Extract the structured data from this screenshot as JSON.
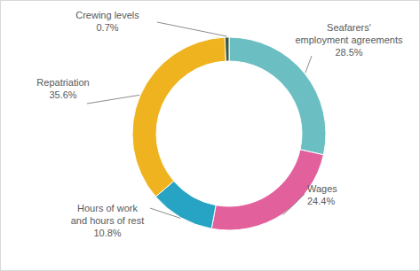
{
  "chart_data": {
    "type": "doughnut",
    "categories": [
      "Seafarers' employment agreements",
      "Wages",
      "Hours of work and hours of rest",
      "Repatriation",
      "Crewing levels"
    ],
    "values": [
      28.5,
      24.4,
      10.8,
      35.6,
      0.7
    ],
    "value_labels": [
      "28.5%",
      "24.4%",
      "10.8%",
      "35.6%",
      "0.7%"
    ],
    "colors": [
      "#6bbfc2",
      "#e2609b",
      "#27a4c4",
      "#efb31f",
      "#3b5b4a"
    ],
    "data_labels": true
  }
}
